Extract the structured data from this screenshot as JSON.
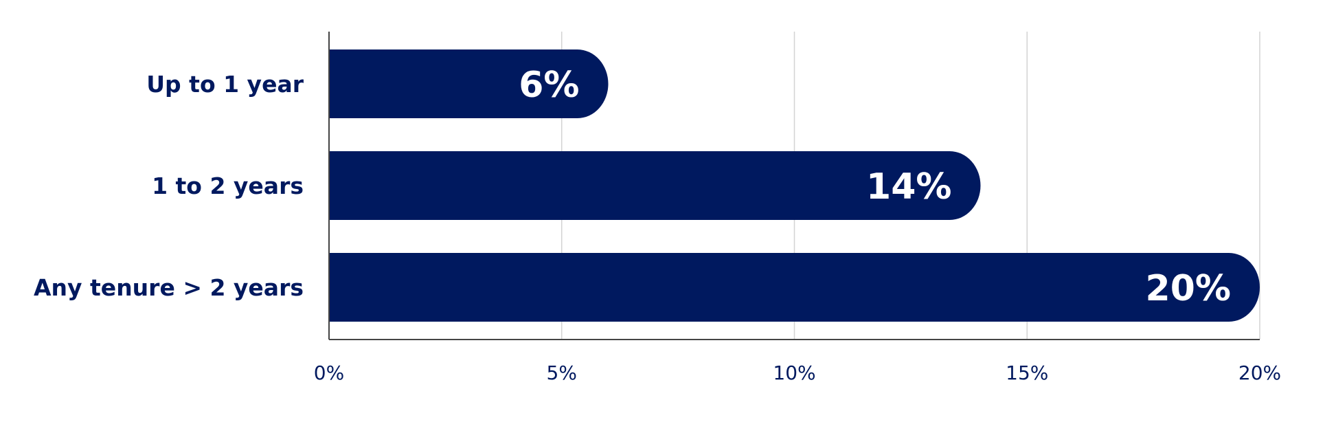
{
  "colors": {
    "bar": "#00195f",
    "label_text": "#00195f",
    "value_text": "#ffffff",
    "gridline": "#d3d3d3",
    "axis_line": "#444444"
  },
  "chart_data": {
    "type": "bar",
    "orientation": "horizontal",
    "title": "",
    "xlabel": "",
    "ylabel": "",
    "categories": [
      "Up to 1 year",
      "1 to 2 years",
      "Any tenure > 2 years"
    ],
    "values": [
      6,
      14,
      20
    ],
    "value_labels": [
      "6%",
      "14%",
      "20%"
    ],
    "xlim": [
      0,
      20
    ],
    "x_ticks": [
      0,
      5,
      10,
      15,
      20
    ],
    "x_tick_labels": [
      "0%",
      "5%",
      "10%",
      "15%",
      "20%"
    ],
    "grid": true,
    "legend": "none"
  }
}
